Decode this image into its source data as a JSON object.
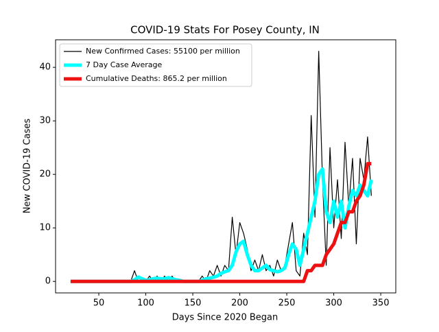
{
  "chart_data": {
    "type": "line",
    "title": "COVID-19 Stats For Posey County, IN",
    "x_label": "Days Since 2020 Began",
    "y_label": "New COVID-19 Cases",
    "x": [
      20,
      24,
      28,
      32,
      36,
      40,
      44,
      48,
      52,
      56,
      60,
      64,
      68,
      72,
      76,
      80,
      84,
      88,
      92,
      96,
      100,
      104,
      108,
      112,
      116,
      120,
      124,
      128,
      132,
      136,
      140,
      144,
      148,
      152,
      156,
      160,
      164,
      168,
      172,
      176,
      180,
      184,
      188,
      192,
      196,
      200,
      204,
      208,
      212,
      216,
      220,
      224,
      228,
      232,
      236,
      240,
      244,
      248,
      252,
      256,
      260,
      264,
      268,
      272,
      276,
      280,
      284,
      288,
      292,
      296,
      300,
      304,
      308,
      312,
      316,
      320,
      324,
      328,
      332,
      336,
      340
    ],
    "series": [
      {
        "name": "New Confirmed Cases: 55100 per million",
        "color": "#000000",
        "width": 1.2,
        "values": [
          0,
          0,
          0,
          0,
          0,
          0,
          0,
          0,
          0,
          0,
          0,
          0,
          0,
          0,
          0,
          0,
          0,
          2,
          0,
          0,
          0,
          1,
          0,
          1,
          0,
          1,
          0,
          1,
          0,
          0,
          0,
          0,
          0,
          0,
          0,
          1,
          0,
          2,
          1,
          3,
          1,
          3,
          2,
          12,
          5,
          11,
          9,
          6,
          2,
          4,
          2,
          5,
          2,
          3,
          1,
          4,
          2,
          3,
          7,
          11,
          2,
          1,
          9,
          5,
          31,
          12,
          43,
          19,
          3,
          25,
          10,
          19,
          8,
          26,
          14,
          23,
          7,
          23,
          19,
          27,
          16
        ]
      },
      {
        "name": "7 Day Case Average",
        "color": "#00ffff",
        "width": 5,
        "values": [
          0,
          0,
          0,
          0,
          0,
          0,
          0,
          0,
          0,
          0,
          0,
          0,
          0,
          0,
          0,
          0,
          0,
          0.3,
          0.8,
          0.5,
          0.2,
          0.3,
          0.5,
          0.6,
          0.5,
          0.5,
          0.7,
          0.5,
          0.3,
          0.2,
          0,
          0,
          0,
          0,
          0,
          0.2,
          0.5,
          0.6,
          0.8,
          1,
          1.5,
          1.8,
          2,
          3,
          5.5,
          7,
          7.5,
          5,
          3,
          2,
          2,
          2.5,
          3,
          2.2,
          2,
          1.8,
          2,
          2.5,
          5,
          7,
          6,
          3,
          6,
          9,
          12,
          15,
          20,
          21,
          13,
          11,
          15,
          12,
          15,
          10,
          14,
          17,
          16,
          18,
          17,
          16,
          19
        ]
      },
      {
        "name": "Cumulative Deaths: 865.2 per million",
        "color": "#ee1111",
        "width": 5,
        "values": [
          0,
          0,
          0,
          0,
          0,
          0,
          0,
          0,
          0,
          0,
          0,
          0,
          0,
          0,
          0,
          0,
          0,
          0,
          0,
          0,
          0,
          0,
          0,
          0,
          0,
          0,
          0,
          0,
          0,
          0,
          0,
          0,
          0,
          0,
          0,
          0,
          0,
          0,
          0,
          0,
          0,
          0,
          0,
          0,
          0,
          0,
          0,
          0,
          0,
          0,
          0,
          0,
          0,
          0,
          0,
          0,
          0,
          0,
          0,
          0,
          0,
          0,
          0,
          2,
          2,
          3,
          3,
          3,
          5,
          6,
          7,
          9,
          11,
          11,
          13,
          13,
          15,
          16,
          18,
          22,
          22
        ]
      }
    ],
    "xlim": [
      4,
      366
    ],
    "ylim": [
      -2.15,
      45.15
    ],
    "xticks": [
      50,
      100,
      150,
      200,
      250,
      300,
      350
    ],
    "yticks": [
      0,
      10,
      20,
      30,
      40
    ],
    "legend": "upper left"
  }
}
